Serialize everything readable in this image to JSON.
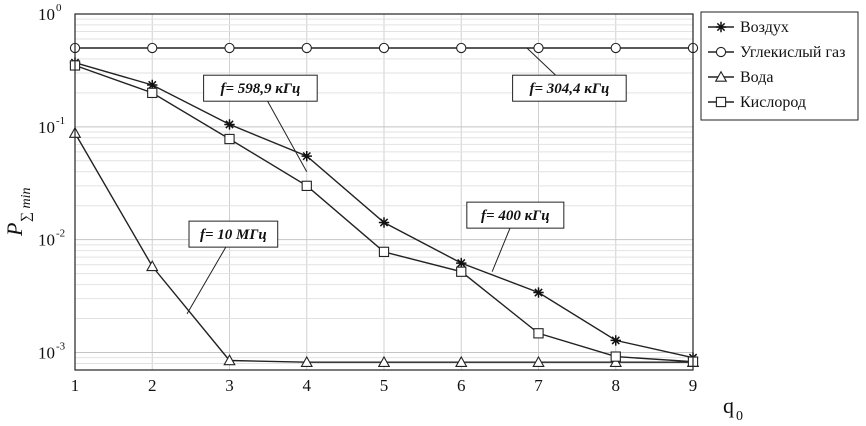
{
  "chart_data": {
    "type": "line",
    "x": [
      1,
      2,
      3,
      4,
      5,
      6,
      7,
      8,
      9
    ],
    "x_ticks": [
      "1",
      "2",
      "3",
      "4",
      "5",
      "6",
      "7",
      "8",
      "9"
    ],
    "xlim": [
      1,
      9
    ],
    "ylim": [
      0.0007,
      1
    ],
    "yscale": "log",
    "y_ticks": [
      {
        "value": 1,
        "base": "10",
        "exp": "0"
      },
      {
        "value": 0.1,
        "base": "10",
        "exp": "-1"
      },
      {
        "value": 0.01,
        "base": "10",
        "exp": "-2"
      },
      {
        "value": 0.001,
        "base": "10",
        "exp": "-3"
      }
    ],
    "xlabel": {
      "main": "q",
      "sub": "0"
    },
    "ylabel": {
      "main": "P",
      "sub": "∑ min"
    },
    "grid": true,
    "legend_position": "top-right",
    "series": [
      {
        "name": "Воздух",
        "marker": "star",
        "values": [
          0.37,
          0.235,
          0.105,
          0.055,
          0.0142,
          0.0062,
          0.0034,
          0.00128,
          0.0009
        ]
      },
      {
        "name": "Углекислый газ",
        "marker": "circle",
        "values": [
          0.5,
          0.5,
          0.5,
          0.5,
          0.5,
          0.5,
          0.5,
          0.5,
          0.5
        ]
      },
      {
        "name": "Вода",
        "marker": "triangle",
        "values": [
          0.088,
          0.0058,
          0.00085,
          0.00082,
          0.00082,
          0.00082,
          0.00082,
          0.00082,
          0.00082
        ]
      },
      {
        "name": "Кислород",
        "marker": "square",
        "values": [
          0.35,
          0.2,
          0.078,
          0.03,
          0.0078,
          0.0052,
          0.00148,
          0.00092,
          0.00083
        ]
      }
    ],
    "annotations": [
      {
        "text": "f= 598,9 кГц",
        "box_x": 3.4,
        "box_y": 0.22,
        "arrow_x": 4.0,
        "arrow_y": 0.04
      },
      {
        "text": "f= 304,4 кГц",
        "box_x": 7.4,
        "box_y": 0.22,
        "arrow_x": 6.85,
        "arrow_y": 0.5
      },
      {
        "text": "f= 10 МГц",
        "box_x": 3.05,
        "box_y": 0.0112,
        "arrow_x": 2.45,
        "arrow_y": 0.0022
      },
      {
        "text": "f= 400 кГц",
        "box_x": 6.7,
        "box_y": 0.0165,
        "arrow_x": 6.4,
        "arrow_y": 0.0052
      }
    ]
  }
}
